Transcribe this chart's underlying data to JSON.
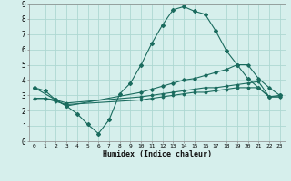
{
  "xlabel": "Humidex (Indice chaleur)",
  "bg_color": "#d6efec",
  "line_color": "#1a6b5e",
  "grid_color": "#aed8d2",
  "xlim": [
    -0.5,
    23.5
  ],
  "ylim": [
    0,
    9
  ],
  "xticks": [
    0,
    1,
    2,
    3,
    4,
    5,
    6,
    7,
    8,
    9,
    10,
    11,
    12,
    13,
    14,
    15,
    16,
    17,
    18,
    19,
    20,
    21,
    22,
    23
  ],
  "yticks": [
    0,
    1,
    2,
    3,
    4,
    5,
    6,
    7,
    8,
    9
  ],
  "line1_x": [
    0,
    1,
    2,
    3,
    4,
    5,
    6,
    7,
    8,
    9,
    10,
    11,
    12,
    13,
    14,
    15,
    16,
    17,
    18,
    19,
    20,
    21,
    22,
    23
  ],
  "line1_y": [
    3.5,
    3.3,
    2.7,
    2.3,
    1.8,
    1.1,
    0.5,
    1.4,
    3.1,
    3.8,
    5.0,
    6.4,
    7.6,
    8.6,
    8.8,
    8.5,
    8.3,
    7.2,
    5.9,
    5.0,
    4.1,
    3.5,
    2.9,
    3.0
  ],
  "line2_x": [
    0,
    2,
    3,
    10,
    11,
    12,
    13,
    14,
    15,
    16,
    17,
    18,
    19,
    20,
    21,
    22,
    23
  ],
  "line2_y": [
    3.5,
    2.7,
    2.3,
    3.2,
    3.4,
    3.6,
    3.8,
    4.0,
    4.1,
    4.3,
    4.5,
    4.7,
    5.0,
    5.0,
    4.1,
    3.5,
    3.0
  ],
  "line3_x": [
    0,
    1,
    2,
    3,
    10,
    11,
    12,
    13,
    14,
    15,
    16,
    17,
    18,
    19,
    20,
    21,
    22,
    23
  ],
  "line3_y": [
    2.8,
    2.8,
    2.7,
    2.5,
    2.9,
    3.0,
    3.1,
    3.2,
    3.3,
    3.4,
    3.5,
    3.5,
    3.6,
    3.7,
    3.8,
    3.9,
    2.9,
    2.9
  ],
  "line4_x": [
    0,
    1,
    2,
    3,
    10,
    11,
    12,
    13,
    14,
    15,
    16,
    17,
    18,
    19,
    20,
    21,
    22,
    23
  ],
  "line4_y": [
    2.8,
    2.8,
    2.6,
    2.4,
    2.7,
    2.8,
    2.9,
    3.0,
    3.1,
    3.2,
    3.2,
    3.3,
    3.4,
    3.5,
    3.5,
    3.5,
    2.9,
    2.9
  ]
}
